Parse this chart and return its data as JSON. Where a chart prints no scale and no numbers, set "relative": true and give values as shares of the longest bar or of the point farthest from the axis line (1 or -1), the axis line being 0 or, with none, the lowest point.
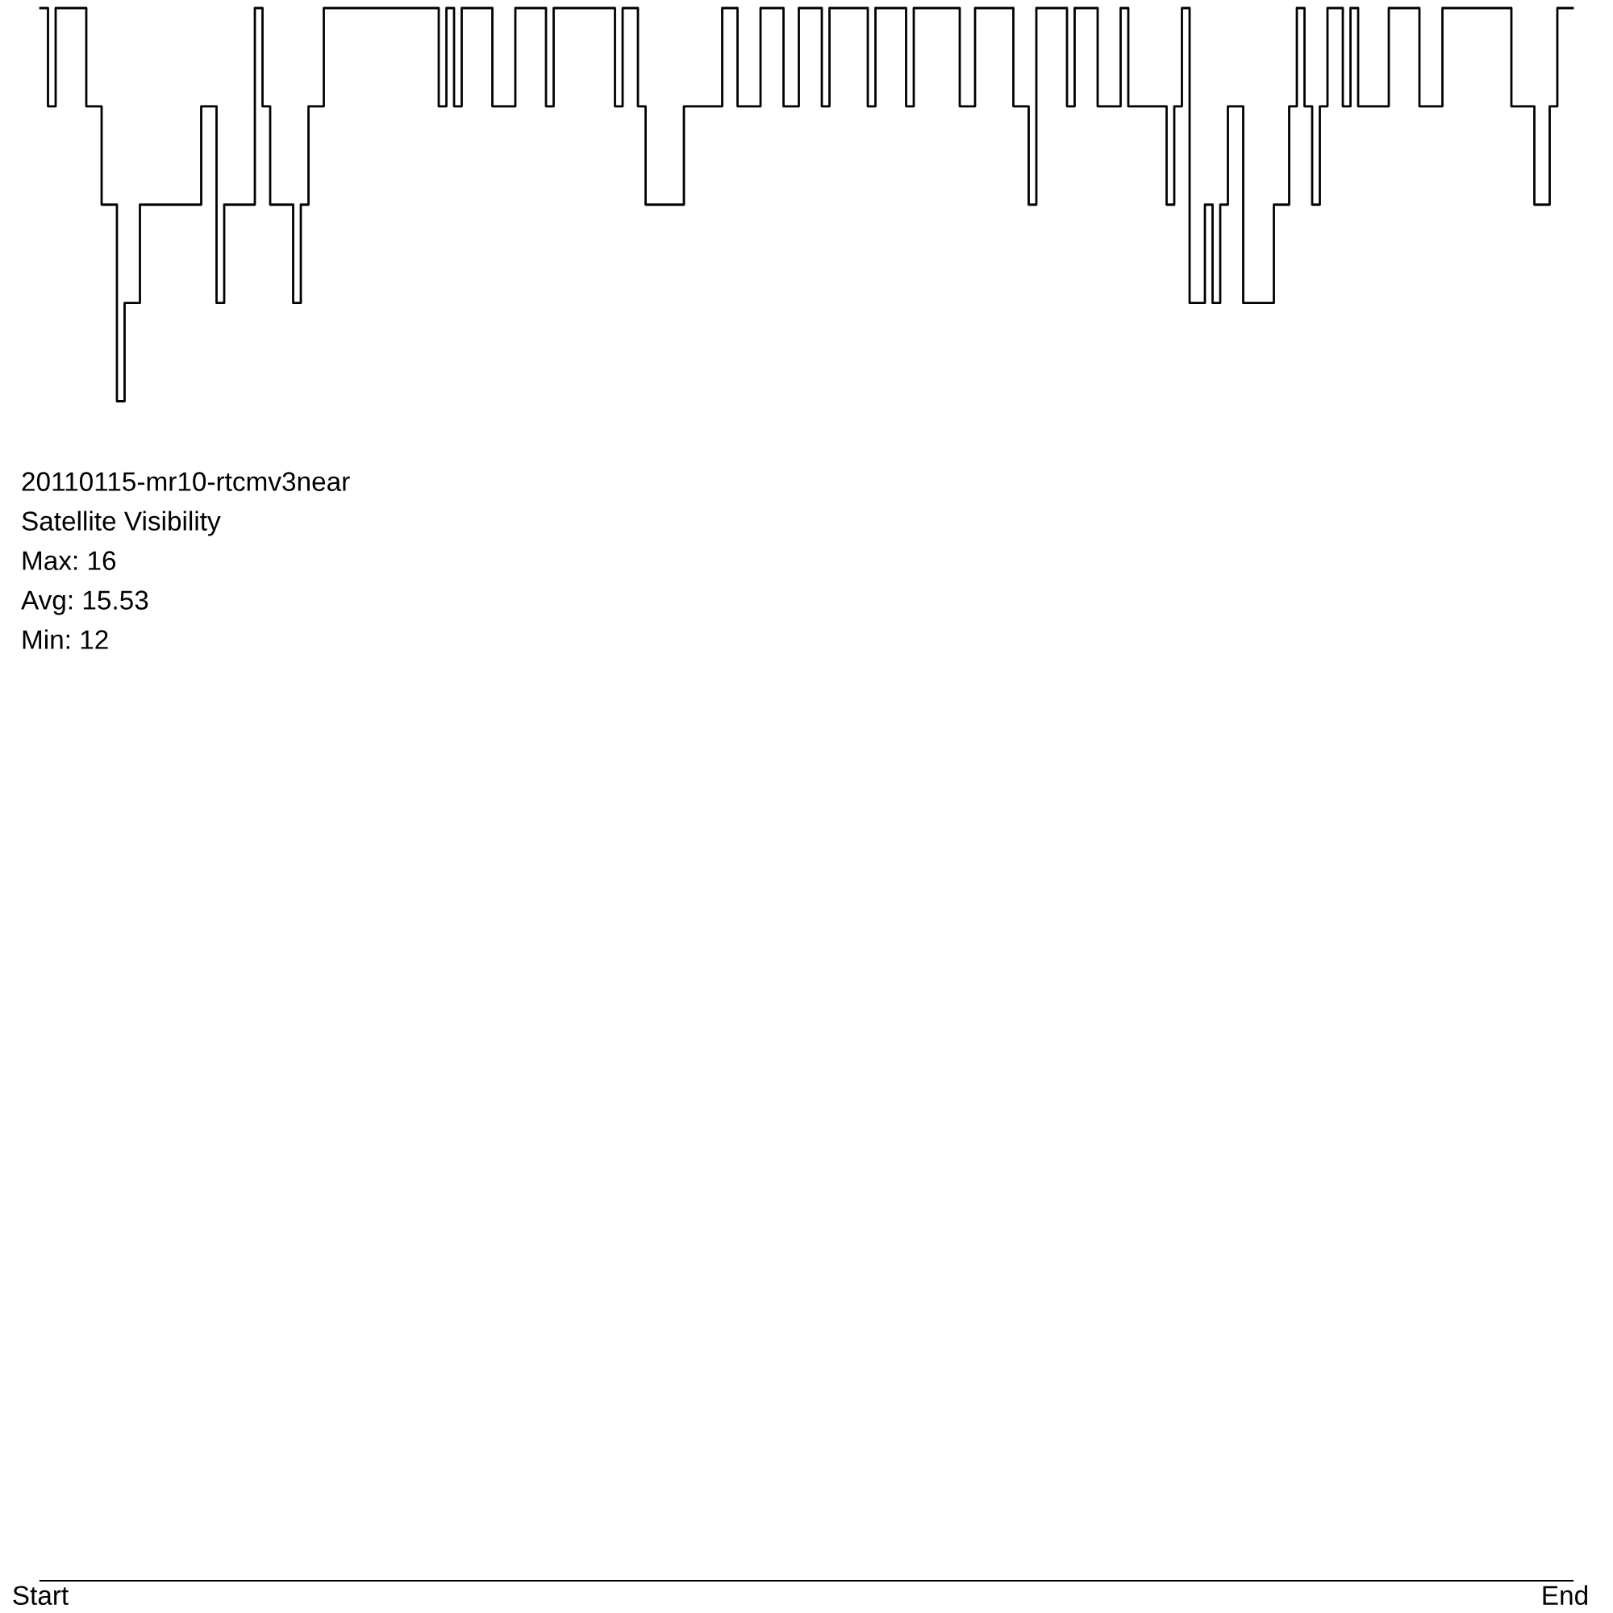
{
  "chart_data": {
    "type": "step",
    "relative": true,
    "title": "20110115-mr10-rtcmv3near",
    "subtitle": "Satellite Visibility",
    "annotations": [
      "Max: 16",
      "Avg: 15.53",
      "Min: 12"
    ],
    "categories": [
      "Start",
      null,
      null,
      null,
      null,
      null,
      null,
      null,
      null,
      null,
      null,
      null,
      null,
      null,
      null,
      null,
      null,
      null,
      null,
      null,
      null,
      null,
      null,
      null,
      null,
      null,
      null,
      null,
      null,
      null,
      null,
      null,
      null,
      null,
      null,
      null,
      null,
      null,
      null,
      null,
      null,
      null,
      null,
      null,
      null,
      null,
      null,
      null,
      null,
      null,
      null,
      null,
      null,
      null,
      null,
      null,
      null,
      null,
      null,
      null,
      null,
      null,
      null,
      null,
      null,
      null,
      null,
      null,
      null,
      null,
      null,
      null,
      null,
      null,
      null,
      null,
      null,
      null,
      null,
      null,
      null,
      null,
      null,
      null,
      null,
      null,
      null,
      null,
      null,
      null,
      null,
      null,
      null,
      null,
      null,
      null,
      null,
      null,
      null,
      null,
      null,
      null,
      null,
      null,
      null,
      null,
      null,
      null,
      null,
      null,
      null,
      null,
      null,
      null,
      null,
      null,
      null,
      null,
      null,
      null,
      null,
      null,
      null,
      null,
      null,
      null,
      null,
      null,
      null,
      null,
      null,
      null,
      null,
      null,
      null,
      null,
      null,
      null,
      null,
      null,
      null,
      null,
      null,
      null,
      null,
      null,
      null,
      null,
      null,
      null,
      null,
      null,
      null,
      null,
      null,
      null,
      null,
      null,
      null,
      null,
      null,
      null,
      null,
      null,
      null,
      null,
      null,
      null,
      null,
      null,
      null,
      null,
      null,
      null,
      null,
      null,
      null,
      null,
      null,
      null,
      null,
      null,
      null,
      null,
      null,
      null,
      null,
      null,
      null,
      null,
      null,
      null,
      null,
      null,
      null,
      null,
      null,
      null,
      null,
      "End"
    ],
    "series": [
      {
        "color": "#000000",
        "values": [
          1,
          0.9375,
          1,
          1,
          1,
          1,
          0.9375,
          0.9375,
          0.875,
          0.875,
          0.75,
          0.8125,
          0.8125,
          0.875,
          0.875,
          0.875,
          0.875,
          0.875,
          0.875,
          0.875,
          0.875,
          0.9375,
          0.9375,
          0.8125,
          0.875,
          0.875,
          0.875,
          0.875,
          1,
          0.9375,
          0.875,
          0.875,
          0.875,
          0.8125,
          0.875,
          0.9375,
          0.9375,
          1,
          1,
          1,
          1,
          1,
          1,
          1,
          1,
          1,
          1,
          1,
          1,
          1,
          1,
          1,
          0.9375,
          1,
          0.9375,
          1,
          1,
          1,
          1,
          0.9375,
          0.9375,
          0.9375,
          1,
          1,
          1,
          1,
          0.9375,
          1,
          1,
          1,
          1,
          1,
          1,
          1,
          1,
          0.9375,
          1,
          1,
          0.9375,
          0.875,
          0.875,
          0.875,
          0.875,
          0.875,
          0.9375,
          0.9375,
          0.9375,
          0.9375,
          0.9375,
          1,
          1,
          0.9375,
          0.9375,
          0.9375,
          1,
          1,
          1,
          0.9375,
          0.9375,
          1,
          1,
          1,
          0.9375,
          1,
          1,
          1,
          1,
          1,
          0.9375,
          1,
          1,
          1,
          1,
          0.9375,
          1,
          1,
          1,
          1,
          1,
          1,
          0.9375,
          0.9375,
          1,
          1,
          1,
          1,
          1,
          0.9375,
          0.9375,
          0.875,
          1,
          1,
          1,
          1,
          0.9375,
          1,
          1,
          1,
          0.9375,
          0.9375,
          0.9375,
          1,
          0.9375,
          0.9375,
          0.9375,
          0.9375,
          0.9375,
          0.875,
          0.9375,
          1,
          0.8125,
          0.8125,
          0.875,
          0.8125,
          0.875,
          0.9375,
          0.9375,
          0.8125,
          0.8125,
          0.8125,
          0.8125,
          0.875,
          0.875,
          0.9375,
          1,
          0.9375,
          0.875,
          0.9375,
          1,
          1,
          0.9375,
          1,
          0.9375,
          0.9375,
          0.9375,
          0.9375,
          1,
          1,
          1,
          1,
          0.9375,
          0.9375,
          0.9375,
          1,
          1,
          1,
          1,
          1,
          1,
          1,
          1,
          1,
          0.9375,
          0.9375,
          0.9375,
          0.875,
          0.875,
          0.9375,
          1,
          1
        ]
      }
    ]
  }
}
